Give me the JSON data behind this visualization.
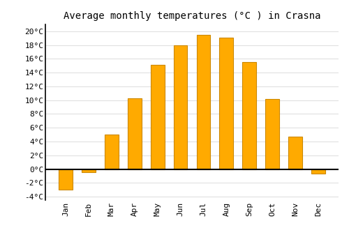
{
  "title": "Average monthly temperatures (°C ) in Crasna",
  "months": [
    "Jan",
    "Feb",
    "Mar",
    "Apr",
    "May",
    "Jun",
    "Jul",
    "Aug",
    "Sep",
    "Oct",
    "Nov",
    "Dec"
  ],
  "values": [
    -3.0,
    -0.5,
    5.0,
    10.3,
    15.1,
    18.0,
    19.5,
    19.1,
    15.5,
    10.2,
    4.7,
    -0.7
  ],
  "bar_color": "#FFAA00",
  "bar_edge_color": "#CC8800",
  "background_color": "#ffffff",
  "plot_bg_color": "#ffffff",
  "grid_color": "#e0e0e0",
  "ylim": [
    -4.5,
    21
  ],
  "yticks": [
    -4,
    -2,
    0,
    2,
    4,
    6,
    8,
    10,
    12,
    14,
    16,
    18,
    20
  ],
  "zero_line_color": "#000000",
  "left_spine_color": "#000000",
  "title_fontsize": 10,
  "tick_fontsize": 8
}
